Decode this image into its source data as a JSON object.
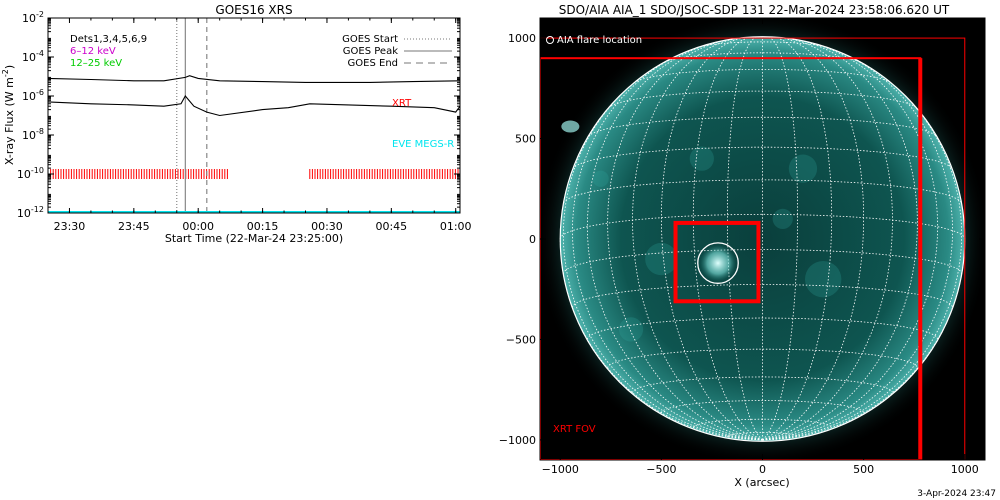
{
  "left_chart": {
    "title": "GOES16 XRS",
    "xlabel": "Start Time (22-Mar-24 23:25:00)",
    "ylabel_prefix": "X-ray Flux (W m",
    "ylabel_exp": "-2",
    "ylabel_suffix": ")",
    "dets_label": "Dets1,3,4,5,6,9",
    "band1_label": "6–12 keV",
    "band2_label": "12–25 keV",
    "legend": [
      {
        "label": "GOES Start",
        "style": "dotted"
      },
      {
        "label": "GOES Peak",
        "style": "solid"
      },
      {
        "label": "GOES End",
        "style": "dashed"
      }
    ],
    "xrt_label": "XRT",
    "eve_label": "EVE MEGS-R",
    "colors": {
      "band1": "#cc00cc",
      "band2": "#00cc00",
      "xrt": "#ff0000",
      "eve": "#00e5ee",
      "event_lines": "#999999"
    }
  },
  "right_chart": {
    "title": "SDO/AIA AIA_1 SDO/JSOC-SDP 131 22-Mar-2024 23:58:06.620 UT",
    "xlabel": "X (arcsec)",
    "legend_label": "AIA flare location",
    "fov_label": "XRT FOV",
    "colors": {
      "fov": "#ff0000",
      "disk": "#0f5a56",
      "grid": "#ffffff"
    }
  },
  "footer": {
    "timestamp": "3-Apr-2024 23:47"
  },
  "chart_data": [
    {
      "type": "line",
      "title": "GOES16 XRS",
      "xlabel": "Start Time (22-Mar-24 23:25:00)",
      "ylabel": "X-ray Flux (W m^-2)",
      "yscale": "log",
      "ylim": [
        1e-12,
        0.01
      ],
      "xlim": [
        "23:25",
        "01:01"
      ],
      "x_ticks": [
        "23:30",
        "23:45",
        "00:00",
        "00:15",
        "00:30",
        "00:45",
        "01:00"
      ],
      "y_ticks": [
        -12,
        -10,
        -8,
        -6,
        -4,
        -2
      ],
      "series": [
        {
          "name": "",
          "x": [
            "23:25",
            "23:35",
            "23:45",
            "23:52",
            "23:57",
            "23:58",
            "24:00",
            "24:05",
            "24:15",
            "24:25",
            "24:40",
            "24:50",
            "25:01"
          ],
          "values": [
            8e-06,
            7e-06,
            6e-06,
            6e-06,
            9e-06,
            1.1e-05,
            8e-06,
            6e-06,
            5.5e-06,
            5e-06,
            5e-06,
            5.5e-06,
            6e-06
          ]
        },
        {
          "name": "",
          "x": [
            "23:25",
            "23:35",
            "23:45",
            "23:52",
            "23:56",
            "23:57",
            "23:59",
            "24:02",
            "24:05",
            "24:15",
            "24:21",
            "24:26",
            "24:35",
            "24:45",
            "24:55",
            "25:00",
            "25:01"
          ],
          "values": [
            5e-07,
            4e-07,
            3.5e-07,
            3e-07,
            4e-07,
            1e-06,
            3e-07,
            1.5e-07,
            1e-07,
            2e-07,
            2.5e-07,
            4e-07,
            3.5e-07,
            3e-07,
            2.5e-07,
            1.5e-07,
            3e-07
          ]
        }
      ],
      "events": {
        "start": "23:55",
        "peak": "23:57",
        "end": "00:02"
      },
      "xrt_coverage": [
        [
          "23:25",
          "00:07"
        ],
        [
          "00:26",
          "01:01"
        ]
      ],
      "eve_flux": 1e-12
    },
    {
      "type": "image",
      "title": "SDO/AIA AIA_1 SDO/JSOC-SDP 131 22-Mar-2024 23:58:06.620 UT",
      "xlabel": "X (arcsec)",
      "xlim": [
        -1100,
        1100
      ],
      "ylim": [
        -1100,
        1100
      ],
      "x_ticks": [
        -1000,
        -500,
        0,
        500,
        1000
      ],
      "y_ticks": [
        -1000,
        -500,
        0,
        500,
        1000
      ],
      "solar_radius": 1000,
      "flare_location": [
        -220,
        -120
      ],
      "flare_circle_radius": 100,
      "xrt_fov_outer": [
        -1100,
        1000,
        1000,
        -1100
      ],
      "xrt_fov_inner": [
        -1100,
        900,
        780,
        -1100
      ],
      "xrt_zoom_box": [
        -430,
        80,
        -20,
        -310
      ]
    }
  ]
}
